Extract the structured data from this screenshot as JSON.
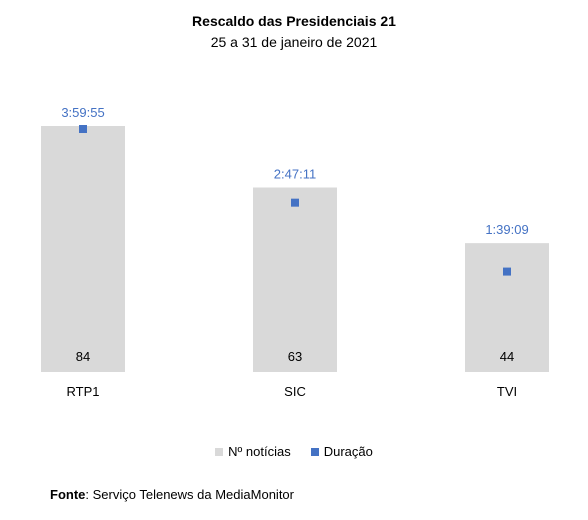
{
  "chart_data": {
    "type": "bar",
    "title": "Rescaldo das Presidenciais 21",
    "subtitle": "25 a 31 de janeiro de 2021",
    "categories": [
      "RTP1",
      "SIC",
      "TVI"
    ],
    "series": [
      {
        "name": "Nº notícias",
        "type": "bar",
        "values": [
          84,
          63,
          44
        ],
        "color": "#d9d9d9"
      },
      {
        "name": "Duração",
        "type": "scatter",
        "values": [
          "3:59:55",
          "2:47:11",
          "1:39:09"
        ],
        "values_seconds": [
          14395,
          10031,
          5949
        ],
        "color": "#4472c4"
      }
    ],
    "ylim": [
      0,
      84
    ],
    "grid": false,
    "legend": "bottom"
  },
  "source": {
    "label": "Fonte",
    "text": "Serviço Telenews da MediaMonitor"
  }
}
